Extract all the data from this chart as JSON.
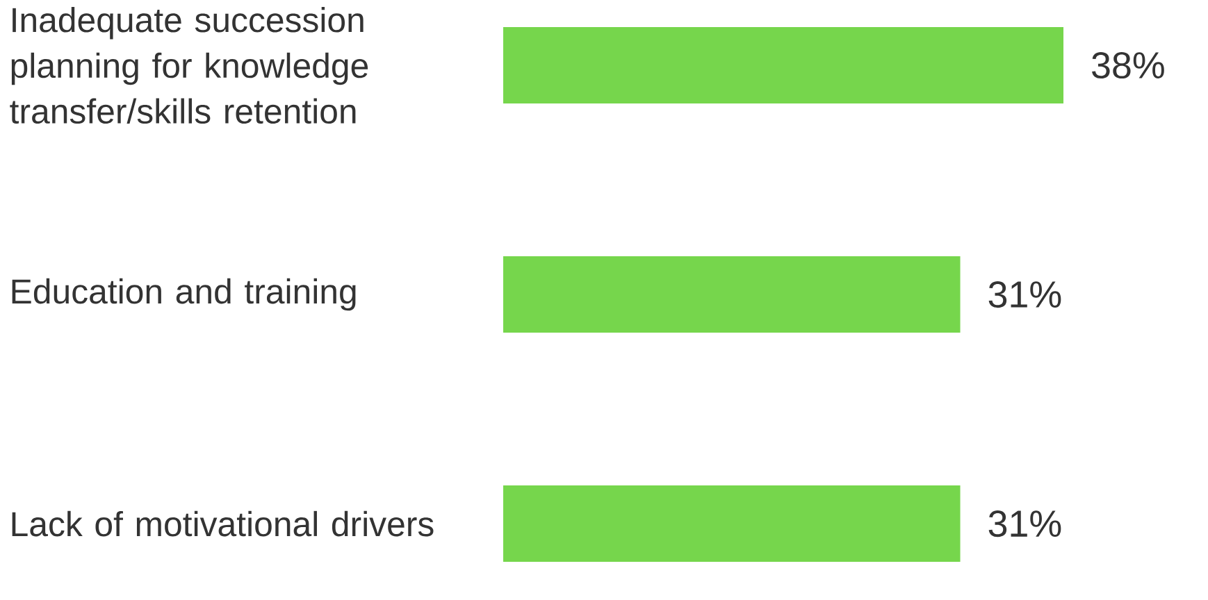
{
  "chart_data": {
    "type": "bar",
    "orientation": "horizontal",
    "categories": [
      "Inadequate succession planning for knowledge transfer/skills retention",
      "Education and training",
      "Lack of motivational drivers"
    ],
    "values": [
      38,
      31,
      31
    ],
    "value_labels": [
      "38%",
      "31%",
      "31%"
    ],
    "color": "#76d64c"
  }
}
